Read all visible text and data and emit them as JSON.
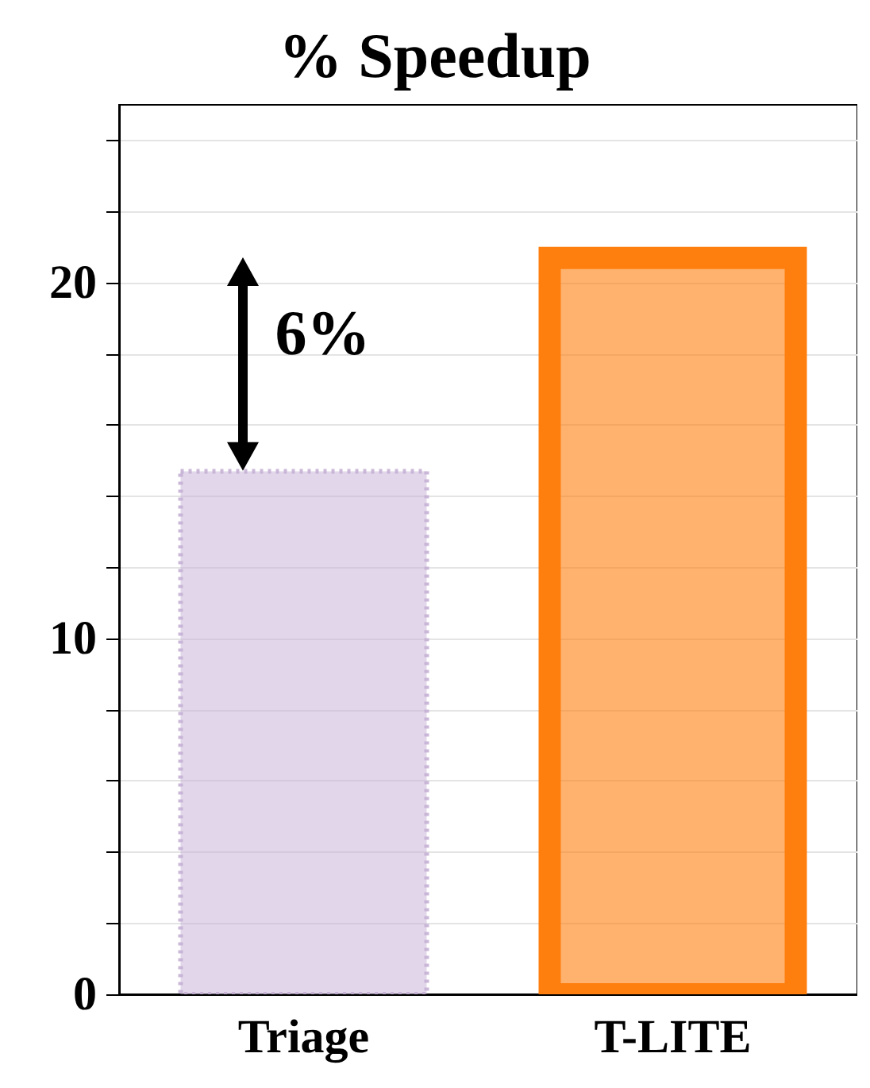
{
  "chart_data": {
    "type": "bar",
    "title": "% Speedup",
    "categories": [
      "Triage",
      "T-LITE"
    ],
    "values": [
      14.7,
      20.7
    ],
    "colors": [
      "#c5b0d5",
      "#ff7f0e"
    ],
    "ylim": [
      0,
      25
    ],
    "yticks": [
      0,
      {
        "value": 2,
        "label": null
      },
      {
        "value": 4,
        "label": null
      },
      {
        "value": 6,
        "label": null
      },
      {
        "value": 8,
        "label": null
      },
      10,
      {
        "value": 12,
        "label": null
      },
      {
        "value": 14,
        "label": null
      },
      {
        "value": 16,
        "label": null
      },
      {
        "value": 18,
        "label": null
      },
      20,
      {
        "value": 22,
        "label": null
      },
      {
        "value": 24,
        "label": null
      }
    ],
    "grid": true,
    "annotations": [
      "6%"
    ]
  }
}
